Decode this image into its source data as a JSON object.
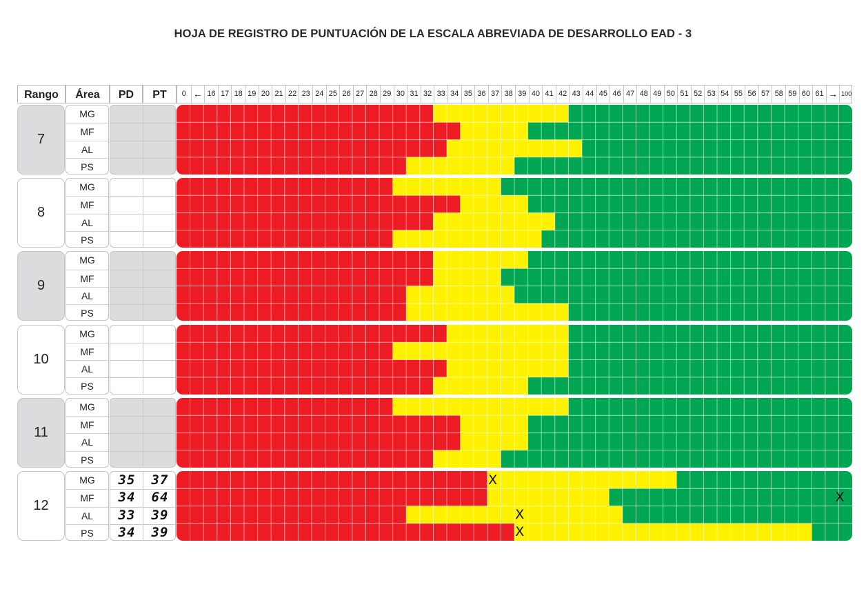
{
  "title": "HOJA DE REGISTRO DE PUNTUACIÓN DE LA ESCALA ABREVIADA DE DESARROLLO EAD - 3",
  "headers": {
    "rango": "Rango",
    "area": "Área",
    "pd": "PD",
    "pt": "PT"
  },
  "scale_labels": [
    "0",
    "←",
    "16",
    "17",
    "18",
    "19",
    "20",
    "21",
    "22",
    "23",
    "24",
    "25",
    "26",
    "27",
    "28",
    "29",
    "30",
    "31",
    "32",
    "33",
    "34",
    "35",
    "36",
    "37",
    "38",
    "39",
    "40",
    "41",
    "42",
    "43",
    "44",
    "45",
    "46",
    "47",
    "48",
    "49",
    "50",
    "51",
    "52",
    "53",
    "54",
    "55",
    "56",
    "57",
    "58",
    "59",
    "60",
    "61",
    "→",
    "100"
  ],
  "colors": {
    "red": "#ed1c24",
    "yellow": "#fff200",
    "green": "#00a651",
    "grey_bg": "#dcdcde"
  },
  "rangos": [
    {
      "rango": "7",
      "shaded": true,
      "rows": [
        {
          "area": "MG",
          "pd": "",
          "pt": "",
          "red_until": "32",
          "green_from": "43"
        },
        {
          "area": "MF",
          "pd": "",
          "pt": "",
          "red_until": "34",
          "green_from": "40"
        },
        {
          "area": "AL",
          "pd": "",
          "pt": "",
          "red_until": "33",
          "green_from": "44"
        },
        {
          "area": "PS",
          "pd": "",
          "pt": "",
          "red_until": "30",
          "green_from": "39"
        }
      ]
    },
    {
      "rango": "8",
      "shaded": false,
      "rows": [
        {
          "area": "MG",
          "pd": "",
          "pt": "",
          "red_until": "29",
          "green_from": "38"
        },
        {
          "area": "MF",
          "pd": "",
          "pt": "",
          "red_until": "34",
          "green_from": "40"
        },
        {
          "area": "AL",
          "pd": "",
          "pt": "",
          "red_until": "32",
          "green_from": "42"
        },
        {
          "area": "PS",
          "pd": "",
          "pt": "",
          "red_until": "29",
          "green_from": "41"
        }
      ]
    },
    {
      "rango": "9",
      "shaded": true,
      "rows": [
        {
          "area": "MG",
          "pd": "",
          "pt": "",
          "red_until": "32",
          "green_from": "40"
        },
        {
          "area": "MF",
          "pd": "",
          "pt": "",
          "red_until": "32",
          "green_from": "38"
        },
        {
          "area": "AL",
          "pd": "",
          "pt": "",
          "red_until": "30",
          "green_from": "39"
        },
        {
          "area": "PS",
          "pd": "",
          "pt": "",
          "red_until": "30",
          "green_from": "43"
        }
      ]
    },
    {
      "rango": "10",
      "shaded": false,
      "rows": [
        {
          "area": "MG",
          "pd": "",
          "pt": "",
          "red_until": "33",
          "green_from": "43"
        },
        {
          "area": "MF",
          "pd": "",
          "pt": "",
          "red_until": "29",
          "green_from": "43"
        },
        {
          "area": "AL",
          "pd": "",
          "pt": "",
          "red_until": "33",
          "green_from": "43"
        },
        {
          "area": "PS",
          "pd": "",
          "pt": "",
          "red_until": "32",
          "green_from": "40"
        }
      ]
    },
    {
      "rango": "11",
      "shaded": true,
      "rows": [
        {
          "area": "MG",
          "pd": "",
          "pt": "",
          "red_until": "29",
          "green_from": "43"
        },
        {
          "area": "MF",
          "pd": "",
          "pt": "",
          "red_until": "34",
          "green_from": "40"
        },
        {
          "area": "AL",
          "pd": "",
          "pt": "",
          "red_until": "34",
          "green_from": "40"
        },
        {
          "area": "PS",
          "pd": "",
          "pt": "",
          "red_until": "32",
          "green_from": "38"
        }
      ]
    },
    {
      "rango": "12",
      "shaded": false,
      "rows": [
        {
          "area": "MG",
          "pd": "35",
          "pt": "37",
          "red_until": "36",
          "green_from": "51",
          "mark": "37"
        },
        {
          "area": "MF",
          "pd": "34",
          "pt": "64",
          "red_until": "36",
          "green_from": "46",
          "mark": "100"
        },
        {
          "area": "AL",
          "pd": "33",
          "pt": "39",
          "red_until": "30",
          "green_from": "47",
          "mark": "39"
        },
        {
          "area": "PS",
          "pd": "34",
          "pt": "39",
          "red_until": "38",
          "green_from": "61",
          "mark": "39"
        }
      ]
    }
  ],
  "mark_symbol": "X"
}
